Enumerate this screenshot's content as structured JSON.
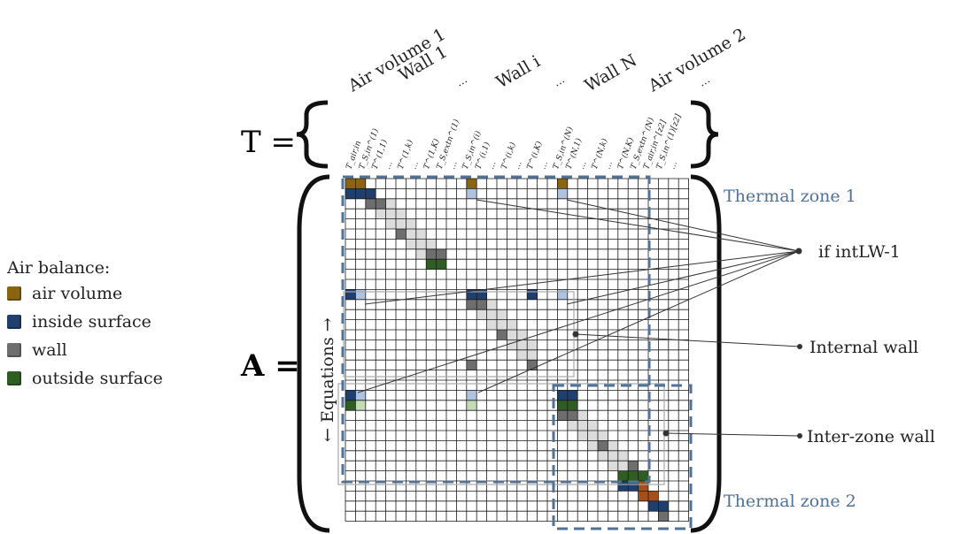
{
  "legend": {
    "title": "Air balance:",
    "items": [
      {
        "label": "air volume",
        "color": "#8a6410"
      },
      {
        "label": "inside surface",
        "color": "#1f3f6e"
      },
      {
        "label": "wall",
        "color": "#6e6e6e"
      },
      {
        "label": "outside surface",
        "color": "#2f5e23"
      }
    ]
  },
  "vector_label": "T =",
  "matrix_label": "A =",
  "equations_label": "← Equations →",
  "column_groups": [
    "Air volume 1",
    "Wall 1",
    "…",
    "Wall i",
    "…",
    "Wall N",
    "Air volume 2",
    "…"
  ],
  "column_headers": [
    "T_air,in",
    "T_S,in^(1)",
    "T^(1,1)",
    "…",
    "T^(1,k)",
    "…",
    "T^(1,K)",
    "T_S,extn^(1)",
    "…",
    "T_S,in^(i)",
    "T^(i,1)",
    "…",
    "T^(i,k)",
    "…",
    "T^(i,K)",
    "…",
    "T_S,in^(N)",
    "T^(N,1)",
    "…",
    "T^(N,k)",
    "…",
    "T^(N,K)",
    "T_S,extn^(N)",
    "T_air,in^[z2]",
    "T_S,in^(1)[z2]",
    "…"
  ],
  "annotations": {
    "zone1": "Thermal zone 1",
    "zone2": "Thermal zone 2",
    "intlw": "if intLW-1",
    "internal_wall": "Internal wall",
    "interzone_wall": "Inter-zone wall"
  },
  "colors": {
    "air": "#8a6410",
    "inside": "#1f3f6e",
    "wall": "#6e6e6e",
    "outside": "#2f5e23",
    "light_inside": "#aec3e1",
    "light_green": "#c4dcb4",
    "orange": "#a4501c",
    "zone_line": "#4f7298",
    "zone_text": "#4f7298"
  }
}
